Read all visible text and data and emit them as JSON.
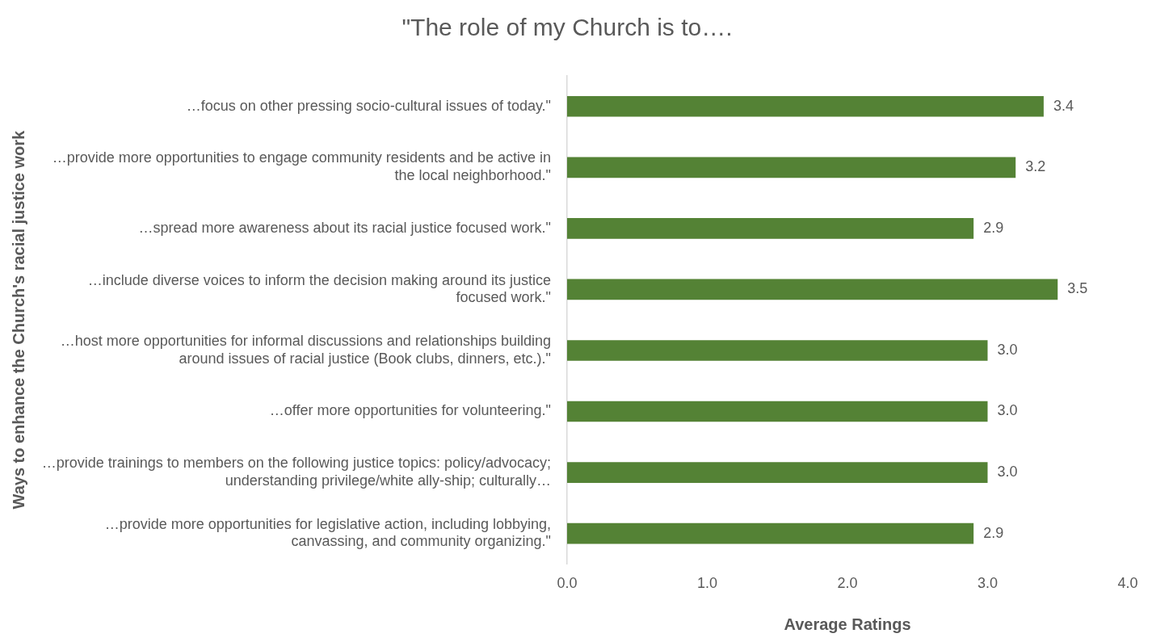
{
  "chart_data": {
    "type": "bar",
    "orientation": "horizontal",
    "title": "\"The role of my Church is to….",
    "xlabel": "Average Ratings",
    "ylabel": "Ways to enhance the Church's racial justice work",
    "categories": [
      "…focus on other pressing socio-cultural issues of today.\"",
      "…provide more opportunities to engage community residents and be active in the local neighborhood.\"",
      "…spread more awareness about its racial justice focused work.\"",
      "…include diverse voices to inform the decision making around its justice focused work.\"",
      "…host more opportunities for informal discussions and relationships building around issues of racial justice (Book clubs, dinners, etc.).\"",
      "…offer more opportunities for volunteering.\"",
      "…provide trainings to members on the following justice topics: policy/advocacy; understanding privilege/white ally-ship; culturally…",
      "…provide more opportunities for legislative action, including lobbying, canvassing, and community organizing.\""
    ],
    "values": [
      3.4,
      3.2,
      2.9,
      3.5,
      3.0,
      3.0,
      3.0,
      2.9
    ],
    "color": "#548235",
    "xlim": [
      0,
      4
    ],
    "xticks": [
      {
        "value": 0,
        "label": "0.0"
      },
      {
        "value": 1,
        "label": "1.0"
      },
      {
        "value": 2,
        "label": "2.0"
      },
      {
        "value": 3,
        "label": "3.0"
      },
      {
        "value": 4,
        "label": "4.0"
      }
    ],
    "grid": false,
    "legend": false,
    "value_labels": [
      "3.4",
      "3.2",
      "2.9",
      "3.5",
      "3.0",
      "3.0",
      "3.0",
      "2.9"
    ]
  }
}
